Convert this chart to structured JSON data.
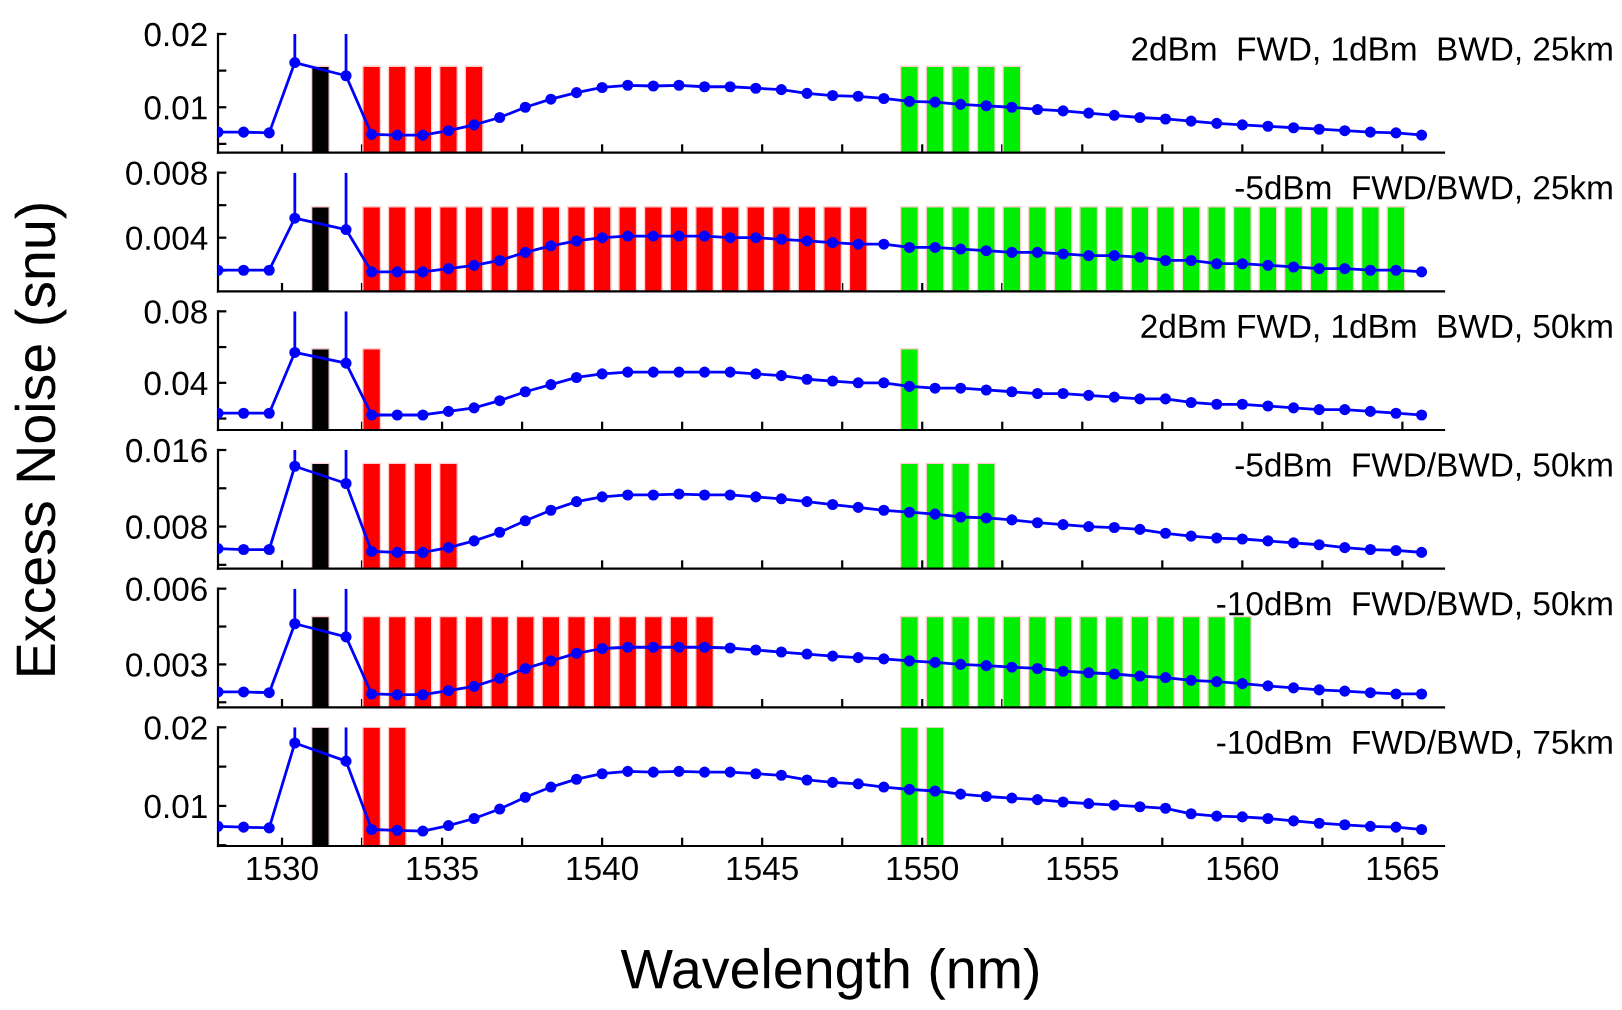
{
  "chart_data": [
    {
      "type": "line",
      "ylabel": "Excess Noise (snu)",
      "annotations": [
        "2dBm  FWD, 1dBm  BWD, 25km"
      ],
      "marker": "circle",
      "tick_labels": "y",
      "xlim": [
        1528,
        1566.3
      ],
      "ylim": [
        0.0038,
        0.02
      ],
      "xticks": [
        1530,
        {
          "value": 1532.5,
          "label": null
        },
        1535,
        {
          "value": 1537.5,
          "label": null
        },
        1540,
        {
          "value": 1542.5,
          "label": null
        },
        1545,
        {
          "value": 1547.5,
          "label": null
        },
        1550,
        {
          "value": 1552.5,
          "label": null
        },
        1555,
        {
          "value": 1557.5,
          "label": null
        },
        1560,
        {
          "value": 1562.5,
          "label": null
        },
        1565
      ],
      "yticks": [
        {
          "value": 0.005,
          "label": null
        },
        0.01,
        {
          "value": 0.015,
          "label": null
        },
        0.02
      ],
      "x": [
        1528,
        1528.8,
        1529.6,
        1530.4,
        1532,
        1532.8,
        1533.6,
        1534.4,
        1535.2,
        1536,
        1536.8,
        1537.6,
        1538.4,
        1539.2,
        1540,
        1540.8,
        1541.6,
        1542.4,
        1543.2,
        1544,
        1544.8,
        1545.6,
        1546.4,
        1547.2,
        1548,
        1548.8,
        1549.6,
        1550.4,
        1551.2,
        1552,
        1552.8,
        1553.6,
        1554.4,
        1555.2,
        1556,
        1556.8,
        1557.6,
        1558.4,
        1559.2,
        1560,
        1560.8,
        1561.6,
        1562.4,
        1563.2,
        1564,
        1564.8,
        1565.6
      ],
      "series": [
        {
          "type": "bar",
          "x": [
            1531.2,
            1532.8,
            1533.6,
            1534.4,
            1535.2,
            1536,
            1549.6,
            1550.4,
            1551.2,
            1552,
            1552.8
          ],
          "values": [
            0.0156,
            0.0156,
            0.0156,
            0.0156,
            0.0156,
            0.0156,
            0.0156,
            0.0156,
            0.0156,
            0.0156,
            0.0156
          ],
          "colors": [
            "#000000",
            "#ff0000",
            "#ff0000",
            "#ff0000",
            "#ff0000",
            "#ff0000",
            "#00ee00",
            "#00ee00",
            "#00ee00",
            "#00ee00",
            "#00ee00"
          ]
        },
        {
          "color": "#0000ff",
          "values": [
            0.0066,
            0.0066,
            0.0065,
            0.0161,
            0.0143,
            0.0063,
            0.0062,
            0.0062,
            0.0068,
            0.0076,
            0.0086,
            0.01,
            0.0111,
            0.012,
            0.0127,
            0.013,
            0.0129,
            0.013,
            0.0128,
            0.0128,
            0.0126,
            0.0124,
            0.0119,
            0.0116,
            0.0115,
            0.0112,
            0.0108,
            0.0107,
            0.0104,
            0.0102,
            0.01,
            0.0097,
            0.0095,
            0.0092,
            0.0089,
            0.0086,
            0.0084,
            0.0081,
            0.0078,
            0.0076,
            0.0074,
            0.0072,
            0.007,
            0.0068,
            0.0066,
            0.0065,
            0.0062
          ],
          "errors": [
            null,
            null,
            null,
            [
              0.0161,
              0.02
            ],
            [
              0.0143,
              0.02
            ],
            null,
            null,
            null,
            null,
            null,
            null,
            null,
            null,
            null,
            null,
            null,
            null,
            null,
            null,
            null,
            null,
            null,
            null,
            null,
            null,
            null,
            null,
            null,
            null,
            null,
            null,
            null,
            null,
            null,
            null,
            null,
            null,
            null,
            null,
            null,
            null,
            null,
            null,
            null,
            null,
            null,
            null
          ]
        }
      ]
    },
    {
      "type": "line",
      "annotations": [
        "-5dBm  FWD/BWD, 25km"
      ],
      "marker": "circle",
      "tick_labels": "y",
      "xlim": [
        1528,
        1566.3
      ],
      "ylim": [
        0.0007,
        0.008
      ],
      "xticks": [
        1530,
        {
          "value": 1532.5,
          "label": null
        },
        1535,
        {
          "value": 1537.5,
          "label": null
        },
        1540,
        {
          "value": 1542.5,
          "label": null
        },
        1545,
        {
          "value": 1547.5,
          "label": null
        },
        1550,
        {
          "value": 1552.5,
          "label": null
        },
        1555,
        {
          "value": 1557.5,
          "label": null
        },
        1560,
        {
          "value": 1562.5,
          "label": null
        },
        1565
      ],
      "yticks": [
        {
          "value": 0.002,
          "label": null
        },
        0.004,
        {
          "value": 0.006,
          "label": null
        },
        0.008
      ],
      "x": [
        1528,
        1528.8,
        1529.6,
        1530.4,
        1532,
        1532.8,
        1533.6,
        1534.4,
        1535.2,
        1536,
        1536.8,
        1537.6,
        1538.4,
        1539.2,
        1540,
        1540.8,
        1541.6,
        1542.4,
        1543.2,
        1544,
        1544.8,
        1545.6,
        1546.4,
        1547.2,
        1548,
        1548.8,
        1549.6,
        1550.4,
        1551.2,
        1552,
        1552.8,
        1553.6,
        1554.4,
        1555.2,
        1556,
        1556.8,
        1557.6,
        1558.4,
        1559.2,
        1560,
        1560.8,
        1561.6,
        1562.4,
        1563.2,
        1564,
        1564.8,
        1565.6
      ],
      "series": [
        {
          "type": "bar",
          "x": [
            1531.2,
            1532.8,
            1533.6,
            1534.4,
            1535.2,
            1536,
            1536.8,
            1537.6,
            1538.4,
            1539.2,
            1540,
            1540.8,
            1541.6,
            1542.4,
            1543.2,
            1544,
            1544.8,
            1545.6,
            1546.4,
            1547.2,
            1548,
            1549.6,
            1550.4,
            1551.2,
            1552,
            1552.8,
            1553.6,
            1554.4,
            1555.2,
            1556,
            1556.8,
            1557.6,
            1558.4,
            1559.2,
            1560,
            1560.8,
            1561.6,
            1562.4,
            1563.2,
            1564,
            1564.8
          ],
          "values": [
            0.0059,
            0.0059,
            0.0059,
            0.0059,
            0.0059,
            0.0059,
            0.0059,
            0.0059,
            0.0059,
            0.0059,
            0.0059,
            0.0059,
            0.0059,
            0.0059,
            0.0059,
            0.0059,
            0.0059,
            0.0059,
            0.0059,
            0.0059,
            0.0059,
            0.0059,
            0.0059,
            0.0059,
            0.0059,
            0.0059,
            0.0059,
            0.0059,
            0.0059,
            0.0059,
            0.0059,
            0.0059,
            0.0059,
            0.0059,
            0.0059,
            0.0059,
            0.0059,
            0.0059,
            0.0059,
            0.0059,
            0.0059
          ],
          "colors": [
            "#000000",
            "#ff0000",
            "#ff0000",
            "#ff0000",
            "#ff0000",
            "#ff0000",
            "#ff0000",
            "#ff0000",
            "#ff0000",
            "#ff0000",
            "#ff0000",
            "#ff0000",
            "#ff0000",
            "#ff0000",
            "#ff0000",
            "#ff0000",
            "#ff0000",
            "#ff0000",
            "#ff0000",
            "#ff0000",
            "#ff0000",
            "#00ee00",
            "#00ee00",
            "#00ee00",
            "#00ee00",
            "#00ee00",
            "#00ee00",
            "#00ee00",
            "#00ee00",
            "#00ee00",
            "#00ee00",
            "#00ee00",
            "#00ee00",
            "#00ee00",
            "#00ee00",
            "#00ee00",
            "#00ee00",
            "#00ee00",
            "#00ee00",
            "#00ee00",
            "#00ee00"
          ]
        },
        {
          "color": "#0000ff",
          "values": [
            0.002,
            0.002,
            0.002,
            0.0052,
            0.0045,
            0.0019,
            0.0019,
            0.0019,
            0.0021,
            0.0023,
            0.0026,
            0.0031,
            0.0035,
            0.0038,
            0.004,
            0.0041,
            0.0041,
            0.0041,
            0.0041,
            0.004,
            0.004,
            0.0039,
            0.0038,
            0.0037,
            0.0036,
            0.0036,
            0.0034,
            0.0034,
            0.0033,
            0.0032,
            0.0031,
            0.0031,
            0.003,
            0.0029,
            0.0029,
            0.0028,
            0.0026,
            0.0026,
            0.0024,
            0.0024,
            0.0023,
            0.0022,
            0.0021,
            0.0021,
            0.002,
            0.002,
            0.0019
          ],
          "errors": [
            null,
            null,
            null,
            [
              0.0052,
              0.008
            ],
            [
              0.0045,
              0.008
            ],
            null,
            null,
            null,
            null,
            null,
            null,
            null,
            null,
            null,
            null,
            null,
            null,
            null,
            null,
            null,
            null,
            null,
            null,
            null,
            null,
            null,
            null,
            null,
            null,
            null,
            null,
            null,
            null,
            null,
            null,
            null,
            null,
            null,
            null,
            null,
            null,
            null,
            null,
            null,
            null,
            null,
            null
          ]
        }
      ]
    },
    {
      "type": "line",
      "annotations": [
        "2dBm FWD, 1dBm  BWD, 50km"
      ],
      "marker": "circle",
      "tick_labels": "y",
      "xlim": [
        1528,
        1566.3
      ],
      "ylim": [
        0.0136,
        0.08
      ],
      "xticks": [
        1530,
        {
          "value": 1532.5,
          "label": null
        },
        1535,
        {
          "value": 1537.5,
          "label": null
        },
        1540,
        {
          "value": 1542.5,
          "label": null
        },
        1545,
        {
          "value": 1547.5,
          "label": null
        },
        1550,
        {
          "value": 1552.5,
          "label": null
        },
        1555,
        {
          "value": 1557.5,
          "label": null
        },
        1560,
        {
          "value": 1562.5,
          "label": null
        },
        1565
      ],
      "yticks": [
        {
          "value": 0.02,
          "label": null
        },
        0.04,
        {
          "value": 0.06,
          "label": null
        },
        0.08
      ],
      "x": [
        1528,
        1528.8,
        1529.6,
        1530.4,
        1532,
        1532.8,
        1533.6,
        1534.4,
        1535.2,
        1536,
        1536.8,
        1537.6,
        1538.4,
        1539.2,
        1540,
        1540.8,
        1541.6,
        1542.4,
        1543.2,
        1544,
        1544.8,
        1545.6,
        1546.4,
        1547.2,
        1548,
        1548.8,
        1549.6,
        1550.4,
        1551.2,
        1552,
        1552.8,
        1553.6,
        1554.4,
        1555.2,
        1556,
        1556.8,
        1557.6,
        1558.4,
        1559.2,
        1560,
        1560.8,
        1561.6,
        1562.4,
        1563.2,
        1564,
        1564.8,
        1565.6
      ],
      "series": [
        {
          "type": "bar",
          "x": [
            1531.2,
            1532.8,
            1549.6
          ],
          "values": [
            0.059,
            0.059,
            0.059
          ],
          "colors": [
            "#000000",
            "#ff0000",
            "#00ee00"
          ]
        },
        {
          "color": "#0000ff",
          "values": [
            0.023,
            0.023,
            0.023,
            0.057,
            0.051,
            0.022,
            0.022,
            0.022,
            0.024,
            0.026,
            0.03,
            0.035,
            0.039,
            0.043,
            0.045,
            0.046,
            0.046,
            0.046,
            0.046,
            0.046,
            0.045,
            0.044,
            0.042,
            0.041,
            0.04,
            0.04,
            0.038,
            0.037,
            0.037,
            0.036,
            0.035,
            0.034,
            0.034,
            0.033,
            0.032,
            0.031,
            0.031,
            0.029,
            0.028,
            0.028,
            0.027,
            0.026,
            0.025,
            0.025,
            0.024,
            0.023,
            0.022
          ],
          "errors": [
            null,
            null,
            null,
            [
              0.057,
              0.08
            ],
            [
              0.051,
              0.08
            ],
            null,
            null,
            null,
            null,
            null,
            null,
            null,
            null,
            null,
            null,
            null,
            null,
            null,
            null,
            null,
            null,
            null,
            null,
            null,
            null,
            null,
            null,
            null,
            null,
            null,
            null,
            null,
            null,
            null,
            null,
            null,
            null,
            null,
            null,
            null,
            null,
            null,
            null,
            null,
            null,
            null,
            null
          ]
        }
      ]
    },
    {
      "type": "line",
      "annotations": [
        "-5dBm  FWD/BWD, 50km"
      ],
      "marker": "circle",
      "tick_labels": "y",
      "xlim": [
        1528,
        1566.3
      ],
      "ylim": [
        0.0036,
        0.016
      ],
      "xticks": [
        1530,
        {
          "value": 1532.5,
          "label": null
        },
        1535,
        {
          "value": 1537.5,
          "label": null
        },
        1540,
        {
          "value": 1542.5,
          "label": null
        },
        1545,
        {
          "value": 1547.5,
          "label": null
        },
        1550,
        {
          "value": 1552.5,
          "label": null
        },
        1555,
        {
          "value": 1557.5,
          "label": null
        },
        1560,
        {
          "value": 1562.5,
          "label": null
        },
        1565
      ],
      "yticks": [
        {
          "value": 0.004,
          "label": null
        },
        0.008,
        {
          "value": 0.012,
          "label": null
        },
        0.016
      ],
      "x": [
        1528,
        1528.8,
        1529.6,
        1530.4,
        1532,
        1532.8,
        1533.6,
        1534.4,
        1535.2,
        1536,
        1536.8,
        1537.6,
        1538.4,
        1539.2,
        1540,
        1540.8,
        1541.6,
        1542.4,
        1543.2,
        1544,
        1544.8,
        1545.6,
        1546.4,
        1547.2,
        1548,
        1548.8,
        1549.6,
        1550.4,
        1551.2,
        1552,
        1552.8,
        1553.6,
        1554.4,
        1555.2,
        1556,
        1556.8,
        1557.6,
        1558.4,
        1559.2,
        1560,
        1560.8,
        1561.6,
        1562.4,
        1563.2,
        1564,
        1564.8,
        1565.6
      ],
      "series": [
        {
          "type": "bar",
          "x": [
            1531.2,
            1532.8,
            1533.6,
            1534.4,
            1535.2,
            1549.6,
            1550.4,
            1551.2,
            1552
          ],
          "values": [
            0.0146,
            0.0146,
            0.0146,
            0.0146,
            0.0146,
            0.0146,
            0.0146,
            0.0146,
            0.0146
          ],
          "colors": [
            "#000000",
            "#ff0000",
            "#ff0000",
            "#ff0000",
            "#ff0000",
            "#00ee00",
            "#00ee00",
            "#00ee00",
            "#00ee00"
          ]
        },
        {
          "color": "#0000ff",
          "values": [
            0.0057,
            0.0056,
            0.0056,
            0.0143,
            0.0125,
            0.0054,
            0.0053,
            0.0053,
            0.0058,
            0.0065,
            0.0074,
            0.0086,
            0.0097,
            0.0106,
            0.0111,
            0.0113,
            0.0113,
            0.0114,
            0.0113,
            0.0113,
            0.0111,
            0.0109,
            0.0106,
            0.0103,
            0.01,
            0.0097,
            0.0095,
            0.0093,
            0.009,
            0.0089,
            0.0087,
            0.0084,
            0.0082,
            0.008,
            0.0079,
            0.0077,
            0.0073,
            0.007,
            0.0068,
            0.0067,
            0.0065,
            0.0063,
            0.0061,
            0.0058,
            0.0056,
            0.0055,
            0.0053
          ],
          "errors": [
            null,
            null,
            null,
            [
              0.0143,
              0.016
            ],
            [
              0.0125,
              0.016
            ],
            null,
            null,
            null,
            null,
            null,
            null,
            null,
            null,
            null,
            null,
            null,
            null,
            null,
            null,
            null,
            null,
            null,
            null,
            null,
            null,
            null,
            null,
            null,
            null,
            null,
            null,
            null,
            null,
            null,
            null,
            null,
            null,
            null,
            null,
            null,
            null,
            null,
            null,
            null,
            null,
            null,
            null
          ]
        }
      ]
    },
    {
      "type": "line",
      "annotations": [
        "-10dBm  FWD/BWD, 50km"
      ],
      "marker": "circle",
      "tick_labels": "y",
      "xlim": [
        1528,
        1566.3
      ],
      "ylim": [
        0.0013,
        0.006
      ],
      "xticks": [
        1530,
        {
          "value": 1532.5,
          "label": null
        },
        1535,
        {
          "value": 1537.5,
          "label": null
        },
        1540,
        {
          "value": 1542.5,
          "label": null
        },
        1545,
        {
          "value": 1547.5,
          "label": null
        },
        1550,
        {
          "value": 1552.5,
          "label": null
        },
        1555,
        {
          "value": 1557.5,
          "label": null
        },
        1560,
        {
          "value": 1562.5,
          "label": null
        },
        1565
      ],
      "yticks": [
        {
          "value": 0.0015,
          "label": null
        },
        0.003,
        {
          "value": 0.0045,
          "label": null
        },
        0.006
      ],
      "x": [
        1528,
        1528.8,
        1529.6,
        1530.4,
        1532,
        1532.8,
        1533.6,
        1534.4,
        1535.2,
        1536,
        1536.8,
        1537.6,
        1538.4,
        1539.2,
        1540,
        1540.8,
        1541.6,
        1542.4,
        1543.2,
        1544,
        1544.8,
        1545.6,
        1546.4,
        1547.2,
        1548,
        1548.8,
        1549.6,
        1550.4,
        1551.2,
        1552,
        1552.8,
        1553.6,
        1554.4,
        1555.2,
        1556,
        1556.8,
        1557.6,
        1558.4,
        1559.2,
        1560,
        1560.8,
        1561.6,
        1562.4,
        1563.2,
        1564,
        1564.8,
        1565.6
      ],
      "series": [
        {
          "type": "bar",
          "x": [
            1531.2,
            1532.8,
            1533.6,
            1534.4,
            1535.2,
            1536,
            1536.8,
            1537.6,
            1538.4,
            1539.2,
            1540,
            1540.8,
            1541.6,
            1542.4,
            1543.2,
            1549.6,
            1550.4,
            1551.2,
            1552,
            1552.8,
            1553.6,
            1554.4,
            1555.2,
            1556,
            1556.8,
            1557.6,
            1558.4,
            1559.2,
            1560
          ],
          "values": [
            0.0049,
            0.0049,
            0.0049,
            0.0049,
            0.0049,
            0.0049,
            0.0049,
            0.0049,
            0.0049,
            0.0049,
            0.0049,
            0.0049,
            0.0049,
            0.0049,
            0.0049,
            0.0049,
            0.0049,
            0.0049,
            0.0049,
            0.0049,
            0.0049,
            0.0049,
            0.0049,
            0.0049,
            0.0049,
            0.0049,
            0.0049,
            0.0049,
            0.0049
          ],
          "colors": [
            "#000000",
            "#ff0000",
            "#ff0000",
            "#ff0000",
            "#ff0000",
            "#ff0000",
            "#ff0000",
            "#ff0000",
            "#ff0000",
            "#ff0000",
            "#ff0000",
            "#ff0000",
            "#ff0000",
            "#ff0000",
            "#ff0000",
            "#00ee00",
            "#00ee00",
            "#00ee00",
            "#00ee00",
            "#00ee00",
            "#00ee00",
            "#00ee00",
            "#00ee00",
            "#00ee00",
            "#00ee00",
            "#00ee00",
            "#00ee00",
            "#00ee00",
            "#00ee00"
          ]
        },
        {
          "color": "#0000ff",
          "values": [
            0.00191,
            0.00191,
            0.00188,
            0.00461,
            0.00409,
            0.00183,
            0.0018,
            0.0018,
            0.00196,
            0.00213,
            0.00245,
            0.00284,
            0.00314,
            0.00344,
            0.00363,
            0.00368,
            0.00368,
            0.00368,
            0.00368,
            0.00365,
            0.00357,
            0.00349,
            0.00341,
            0.00333,
            0.00327,
            0.00322,
            0.00314,
            0.00308,
            0.003,
            0.00295,
            0.00289,
            0.00284,
            0.00273,
            0.00267,
            0.00262,
            0.00254,
            0.00248,
            0.00237,
            0.00232,
            0.00224,
            0.00215,
            0.00207,
            0.00199,
            0.00194,
            0.00188,
            0.00183,
            0.00183
          ],
          "errors": [
            null,
            null,
            null,
            [
              0.00461,
              0.006
            ],
            [
              0.00409,
              0.006
            ],
            null,
            null,
            null,
            null,
            null,
            null,
            null,
            null,
            null,
            null,
            null,
            null,
            null,
            null,
            null,
            null,
            null,
            null,
            null,
            null,
            null,
            null,
            null,
            null,
            null,
            null,
            null,
            null,
            null,
            null,
            null,
            null,
            null,
            null,
            null,
            null,
            null,
            null,
            null,
            null,
            null,
            null
          ]
        }
      ]
    },
    {
      "type": "line",
      "xlabel": "Wavelength (nm)",
      "annotations": [
        "-10dBm  FWD/BWD, 75km"
      ],
      "marker": "circle",
      "xlim": [
        1528,
        1566.3
      ],
      "ylim": [
        0.0049,
        0.02
      ],
      "xticks": [
        1530,
        {
          "value": 1532.5,
          "label": null
        },
        1535,
        {
          "value": 1537.5,
          "label": null
        },
        1540,
        {
          "value": 1542.5,
          "label": null
        },
        1545,
        {
          "value": 1547.5,
          "label": null
        },
        1550,
        {
          "value": 1552.5,
          "label": null
        },
        1555,
        {
          "value": 1557.5,
          "label": null
        },
        1560,
        {
          "value": 1562.5,
          "label": null
        },
        1565
      ],
      "yticks": [
        {
          "value": 0.005,
          "label": null
        },
        0.01,
        {
          "value": 0.015,
          "label": null
        },
        0.02
      ],
      "x": [
        1528,
        1528.8,
        1529.6,
        1530.4,
        1532,
        1532.8,
        1533.6,
        1534.4,
        1535.2,
        1536,
        1536.8,
        1537.6,
        1538.4,
        1539.2,
        1540,
        1540.8,
        1541.6,
        1542.4,
        1543.2,
        1544,
        1544.8,
        1545.6,
        1546.4,
        1547.2,
        1548,
        1548.8,
        1549.6,
        1550.4,
        1551.2,
        1552,
        1552.8,
        1553.6,
        1554.4,
        1555.2,
        1556,
        1556.8,
        1557.6,
        1558.4,
        1559.2,
        1560,
        1560.8,
        1561.6,
        1562.4,
        1563.2,
        1564,
        1564.8,
        1565.6
      ],
      "series": [
        {
          "type": "bar",
          "x": [
            1531.2,
            1532.8,
            1533.6,
            1549.6,
            1550.4
          ],
          "values": [
            0.02,
            0.02,
            0.02,
            0.02,
            0.02
          ],
          "colors": [
            "#000000",
            "#ff0000",
            "#ff0000",
            "#00ee00",
            "#00ee00"
          ]
        },
        {
          "color": "#0000ff",
          "values": [
            0.0074,
            0.0073,
            0.0072,
            0.018,
            0.0157,
            0.007,
            0.0069,
            0.0068,
            0.0075,
            0.0084,
            0.0096,
            0.0111,
            0.0124,
            0.0134,
            0.0141,
            0.0144,
            0.0143,
            0.0144,
            0.0143,
            0.0143,
            0.0141,
            0.0139,
            0.0133,
            0.013,
            0.0128,
            0.0124,
            0.0121,
            0.0119,
            0.0115,
            0.0112,
            0.011,
            0.0108,
            0.0105,
            0.0103,
            0.0101,
            0.0099,
            0.0097,
            0.009,
            0.0087,
            0.0086,
            0.0084,
            0.0081,
            0.0078,
            0.0076,
            0.0074,
            0.0073,
            0.007
          ],
          "errors": [
            null,
            null,
            null,
            [
              0.018,
              0.02
            ],
            [
              0.0157,
              0.02
            ],
            null,
            null,
            null,
            null,
            null,
            null,
            null,
            null,
            null,
            null,
            null,
            null,
            null,
            null,
            null,
            null,
            null,
            null,
            null,
            null,
            null,
            null,
            null,
            null,
            null,
            null,
            null,
            null,
            null,
            null,
            null,
            null,
            null,
            null,
            null,
            null,
            null,
            null,
            null,
            null,
            null,
            null
          ]
        }
      ]
    }
  ]
}
